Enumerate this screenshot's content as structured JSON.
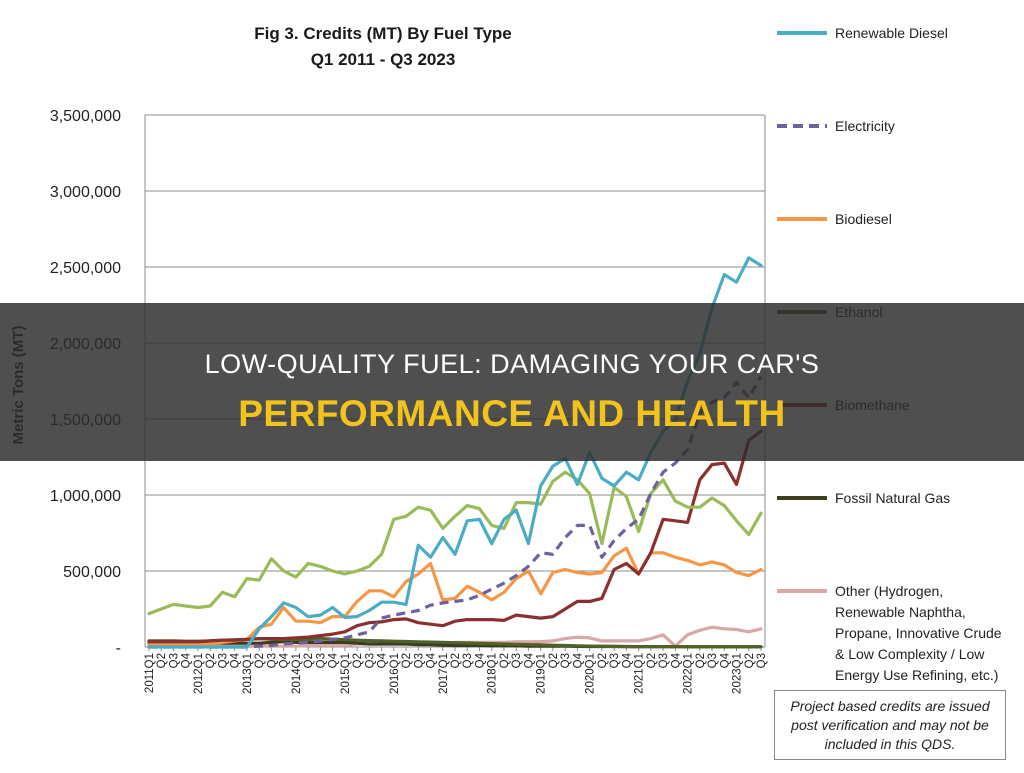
{
  "chart_data": {
    "type": "line",
    "title": [
      "Fig 3. Credits (MT) By Fuel Type",
      "Q1 2011 - Q3 2023"
    ],
    "ylabel": "Metric Tons (MT)",
    "ylim": [
      0,
      3500000
    ],
    "yticks": [
      {
        "value": 0,
        "label": "-"
      },
      {
        "value": 500000,
        "label": "500,000"
      },
      {
        "value": 1000000,
        "label": "1,000,000"
      },
      {
        "value": 1500000,
        "label": "1,500,000"
      },
      {
        "value": 2000000,
        "label": "2,000,000"
      },
      {
        "value": 2500000,
        "label": "2,500,000"
      },
      {
        "value": 3000000,
        "label": "3,000,000"
      },
      {
        "value": 3500000,
        "label": "3,500,000"
      }
    ],
    "grid": true,
    "legend_position": "right",
    "x": [
      "2011Q1",
      "Q2",
      "Q3",
      "Q4",
      "2012Q1",
      "Q2",
      "Q3",
      "Q4",
      "2013Q1",
      "Q2",
      "Q3",
      "Q4",
      "2014Q1",
      "Q2",
      "Q3",
      "Q4",
      "2015Q1",
      "Q2",
      "Q3",
      "Q4",
      "2016Q1",
      "Q2",
      "Q3",
      "Q4",
      "2017Q1",
      "Q2",
      "Q3",
      "Q4",
      "2018Q1",
      "Q2",
      "Q3",
      "Q4",
      "2019Q1",
      "Q2",
      "Q3",
      "Q4",
      "2020Q1",
      "Q2",
      "Q3",
      "Q4",
      "2021Q1",
      "Q2",
      "Q3",
      "Q4",
      "2022Q1",
      "Q2",
      "Q3",
      "Q4",
      "2023Q1",
      "Q2",
      "Q3"
    ],
    "series": [
      {
        "name": "Renewable Diesel",
        "color": "#4bacc6",
        "dash": false,
        "values": [
          0,
          0,
          0,
          0,
          0,
          0,
          0,
          0,
          0,
          120000,
          200000,
          290000,
          260000,
          200000,
          210000,
          260000,
          195000,
          200000,
          240000,
          295000,
          295000,
          280000,
          670000,
          590000,
          720000,
          610000,
          830000,
          840000,
          680000,
          840000,
          900000,
          680000,
          1060000,
          1190000,
          1240000,
          1070000,
          1280000,
          1110000,
          1060000,
          1150000,
          1100000,
          1280000,
          1420000,
          1490000,
          1750000,
          1930000,
          2230000,
          2450000,
          2400000,
          2560000,
          2510000
        ]
      },
      {
        "name": "Electricity",
        "color": "#7060a0",
        "dash": true,
        "values": [
          0,
          0,
          0,
          0,
          0,
          0,
          0,
          0,
          0,
          5000,
          10000,
          20000,
          25000,
          30000,
          40000,
          50000,
          60000,
          80000,
          100000,
          190000,
          210000,
          225000,
          240000,
          275000,
          290000,
          300000,
          310000,
          340000,
          380000,
          420000,
          470000,
          530000,
          620000,
          610000,
          720000,
          800000,
          800000,
          590000,
          700000,
          780000,
          840000,
          1010000,
          1150000,
          1210000,
          1300000,
          1540000,
          1610000,
          1640000,
          1740000,
          1640000,
          1780000
        ]
      },
      {
        "name": "Biodiesel",
        "color": "#f79646",
        "dash": false,
        "values": [
          15000,
          15000,
          15000,
          15000,
          15000,
          20000,
          30000,
          40000,
          50000,
          130000,
          150000,
          260000,
          170000,
          170000,
          160000,
          200000,
          200000,
          300000,
          370000,
          370000,
          330000,
          430000,
          480000,
          550000,
          310000,
          320000,
          400000,
          360000,
          310000,
          360000,
          450000,
          500000,
          350000,
          490000,
          510000,
          490000,
          480000,
          490000,
          600000,
          650000,
          480000,
          620000,
          620000,
          590000,
          570000,
          540000,
          560000,
          540000,
          490000,
          470000,
          510000
        ]
      },
      {
        "name": "Ethanol",
        "color": "#9bbb59",
        "dash": false,
        "values": [
          220000,
          250000,
          280000,
          270000,
          260000,
          270000,
          360000,
          330000,
          450000,
          440000,
          580000,
          500000,
          460000,
          550000,
          530000,
          500000,
          480000,
          500000,
          530000,
          610000,
          840000,
          860000,
          920000,
          900000,
          780000,
          860000,
          930000,
          910000,
          800000,
          780000,
          950000,
          950000,
          940000,
          1090000,
          1150000,
          1100000,
          1010000,
          680000,
          1050000,
          990000,
          760000,
          1010000,
          1100000,
          960000,
          920000,
          920000,
          980000,
          930000,
          830000,
          740000,
          880000
        ]
      },
      {
        "name": "Ethanol (2)",
        "color": "#4f6228",
        "dash": false,
        "values": [
          40000,
          40000,
          40000,
          38000,
          38000,
          40000,
          45000,
          48000,
          50000,
          55000,
          52000,
          50000,
          50000,
          50000,
          55000,
          52000,
          48000,
          45000,
          42000,
          40000,
          38000,
          36000,
          34000,
          32000,
          30000,
          28000,
          26000,
          24000,
          22000,
          20000,
          18000,
          16000,
          14000,
          12000,
          10000,
          8000,
          6000,
          5000,
          4000,
          3000,
          2000,
          2000,
          2000,
          2000,
          2000,
          2000,
          2000,
          2000,
          2000,
          2000,
          2000
        ]
      },
      {
        "name": "Biomethane",
        "color": "#8b2f2f",
        "dash": false,
        "values": [
          35000,
          35000,
          35000,
          35000,
          35000,
          40000,
          45000,
          45000,
          50000,
          55000,
          55000,
          55000,
          60000,
          65000,
          75000,
          85000,
          100000,
          140000,
          160000,
          165000,
          180000,
          185000,
          160000,
          150000,
          140000,
          170000,
          180000,
          180000,
          180000,
          175000,
          210000,
          200000,
          190000,
          200000,
          250000,
          300000,
          300000,
          320000,
          510000,
          550000,
          480000,
          620000,
          840000,
          830000,
          820000,
          1100000,
          1200000,
          1210000,
          1070000,
          1360000,
          1420000
        ]
      },
      {
        "name": "Fossil Natural Gas",
        "color": "#3c3c1e",
        "dash": false,
        "values": [
          25000,
          25000,
          25000,
          25000,
          25000,
          25000,
          25000,
          25000,
          25000,
          25000,
          30000,
          35000,
          30000,
          30000,
          30000,
          30000,
          30000,
          25000,
          20000,
          20000,
          20000,
          20000,
          15000,
          15000,
          12000,
          10000,
          10000,
          10000,
          8000,
          8000,
          8000,
          6000,
          6000,
          5000,
          5000,
          4000,
          3000,
          3000,
          3000,
          2000,
          2000,
          2000,
          2000,
          2000,
          1000,
          1000,
          1000,
          1000,
          1000,
          1000,
          1000
        ]
      },
      {
        "name": "Other",
        "color": "#d9a7a7",
        "dash": false,
        "values": [
          5000,
          5000,
          5000,
          5000,
          5000,
          5000,
          5000,
          5000,
          5000,
          5000,
          5000,
          5000,
          5000,
          10000,
          10000,
          10000,
          10000,
          20000,
          20000,
          20000,
          25000,
          25000,
          25000,
          25000,
          25000,
          30000,
          30000,
          30000,
          30000,
          30000,
          35000,
          35000,
          35000,
          40000,
          55000,
          65000,
          60000,
          40000,
          40000,
          40000,
          40000,
          55000,
          80000,
          5000,
          80000,
          110000,
          130000,
          120000,
          115000,
          100000,
          120000
        ]
      }
    ],
    "legend": [
      {
        "label": "Renewable Diesel",
        "color": "#4bacc6",
        "dash": false
      },
      {
        "label": "Electricity",
        "color": "#7060a0",
        "dash": true
      },
      {
        "label": "Biodiesel",
        "color": "#f79646",
        "dash": false
      },
      {
        "label": "Ethanol",
        "color": "#4f6228",
        "dash": false
      },
      {
        "label": "Biomethane",
        "color": "#8b2f2f",
        "dash": false
      },
      {
        "label": "Fossil Natural Gas",
        "color": "#3c3c1e",
        "dash": false
      },
      {
        "label": "Other (Hydrogen,|Renewable Naphtha,|Propane, Innovative Crude|& Low Complexity / Low|Energy Use Refining, etc.)",
        "color": "#d9a7a7",
        "dash": false
      }
    ]
  },
  "note": "Project based credits are issued post verification and may not be included in this QDS.",
  "overlay": {
    "line1": "LOW-QUALITY FUEL: DAMAGING YOUR CAR'S",
    "line2": "PERFORMANCE AND HEALTH"
  }
}
